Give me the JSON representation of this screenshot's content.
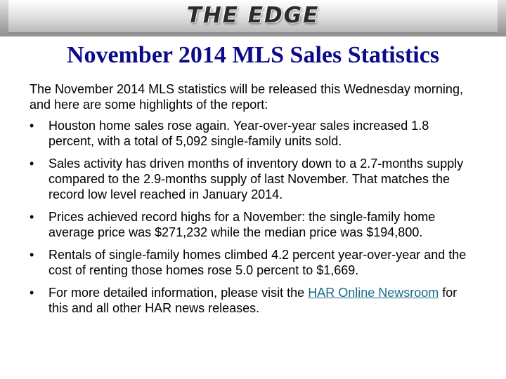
{
  "banner": {
    "brand": "THE EDGE"
  },
  "slide": {
    "title": "November 2014 MLS Sales Statistics",
    "intro": "The November 2014 MLS statistics will be released this Wednesday morning, and here are some highlights of the report:",
    "bullet_marker": "•",
    "bullets": [
      "Houston home sales rose again. Year-over-year sales increased 1.8 percent, with a total of 5,092 single-family units sold.",
      "Sales activity has driven months of inventory down to a 2.7-months supply compared to the 2.9-months supply of last November. That matches the record low level reached in January 2014.",
      "Prices achieved record highs for a November: the single-family home average price was $271,232 while the median price was $194,800.",
      "Rentals of single-family homes climbed 4.2 percent year-over-year and the cost of renting those homes rose 5.0 percent to $1,669."
    ],
    "last_bullet": {
      "prefix": "For more detailed information, please visit the ",
      "link_text": "HAR Online Newsroom",
      "suffix": " for this and all other HAR news releases."
    }
  },
  "colors": {
    "title": "#0b0b8a",
    "link": "#1a6a8c",
    "text": "#000000"
  }
}
